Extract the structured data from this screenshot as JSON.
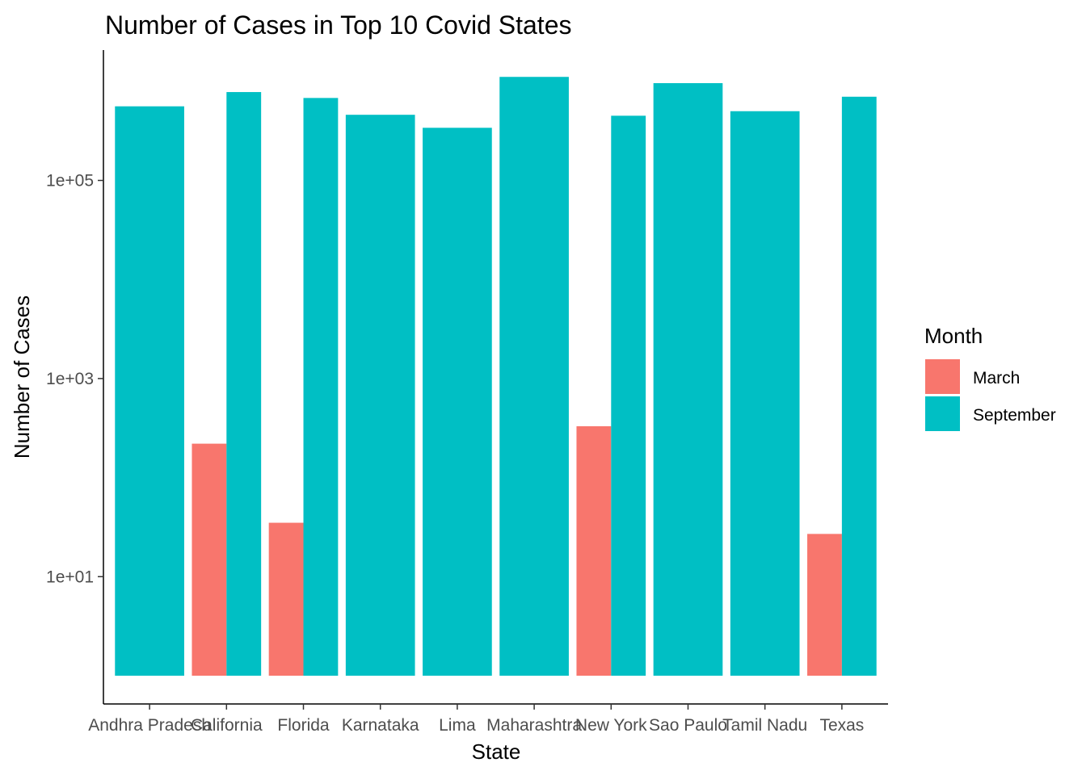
{
  "chart_data": {
    "type": "bar",
    "title": "Number of Cases in Top 10 Covid States",
    "xlabel": "State",
    "ylabel": "Number of Cases",
    "yscale": "log10",
    "ylim": [
      1,
      1500000
    ],
    "yticks": [
      {
        "value": 10,
        "label": "1e+01"
      },
      {
        "value": 1000,
        "label": "1e+03"
      },
      {
        "value": 100000,
        "label": "1e+05"
      }
    ],
    "categories": [
      "Andhra Pradesh",
      "California",
      "Florida",
      "Karnataka",
      "Lima",
      "Maharashtra",
      "New York",
      "Sao Paulo",
      "Tamil Nadu",
      "Texas"
    ],
    "series": [
      {
        "name": "March",
        "color": "#F8766D",
        "values": [
          null,
          220,
          35,
          null,
          null,
          null,
          330,
          null,
          null,
          27
        ]
      },
      {
        "name": "September",
        "color": "#00BFC4",
        "values": [
          560000,
          780000,
          680000,
          460000,
          340000,
          1110000,
          450000,
          960000,
          500000,
          700000
        ]
      }
    ],
    "legend": {
      "title": "Month",
      "position": "right"
    },
    "grid": false
  }
}
